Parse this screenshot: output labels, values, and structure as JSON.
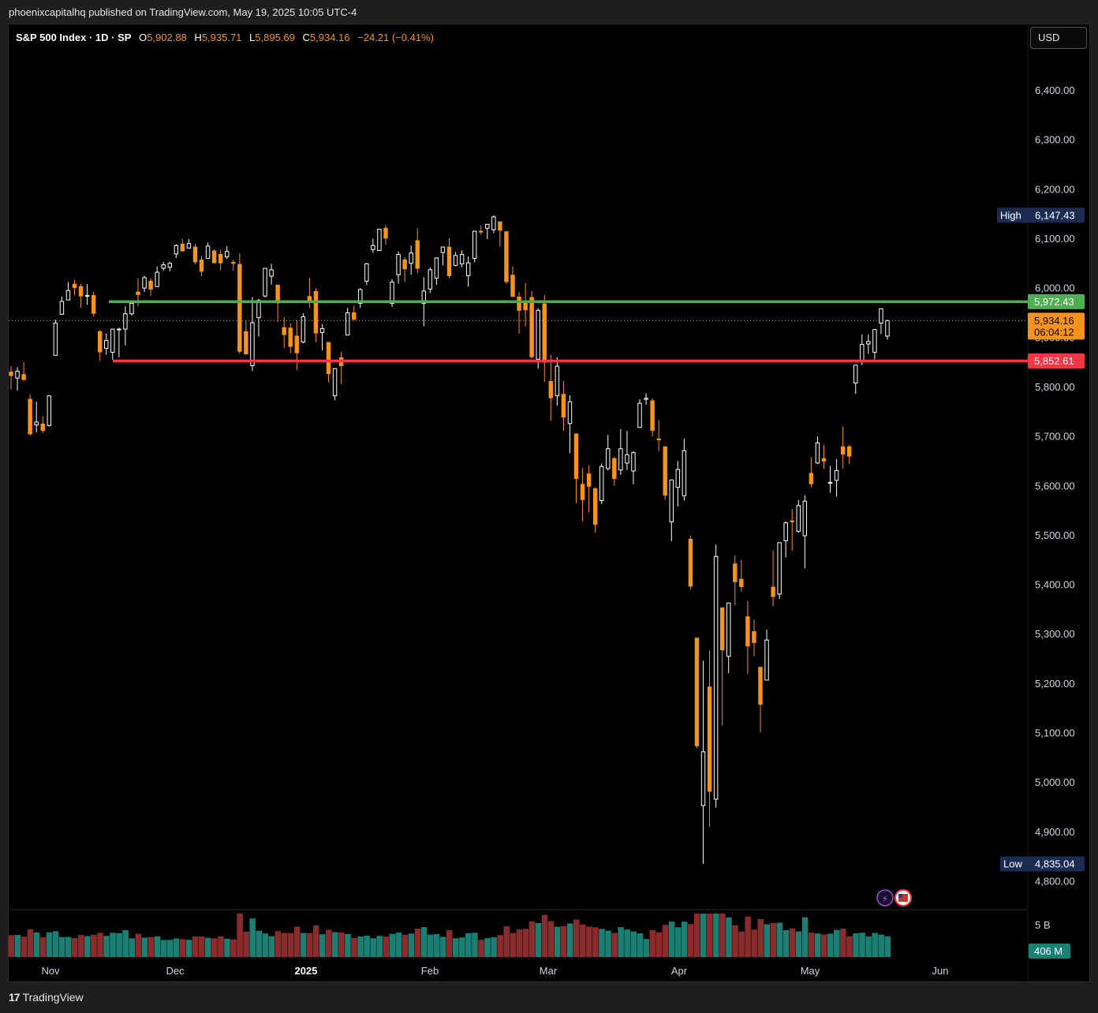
{
  "header": {
    "published": "phoenixcapitalhq published on TradingView.com, May 19, 2025 10:05 UTC-4"
  },
  "legend": {
    "symbol": "S&P 500 Index · 1D · SP",
    "o_label": "O",
    "o_value": "5,902.88",
    "h_label": "H",
    "h_value": "5,935.71",
    "l_label": "L",
    "l_value": "5,895.69",
    "c_label": "C",
    "c_value": "5,934.16",
    "change": "−24.21 (−0.41%)"
  },
  "currency": "USD",
  "footer": {
    "brand": "TradingView",
    "logo": "tv-logo-icon"
  },
  "colors": {
    "up": "#ffffff",
    "down": "#f7931a",
    "background": "#000000",
    "resistance": "#4caf50",
    "support": "#f23645",
    "vol_up": "#1b7f74",
    "vol_down": "#8b2b2b",
    "label_bg": "#1c2b52"
  },
  "chart_data": {
    "type": "candlestick",
    "y_axis": {
      "ticks": [
        "6,400.00",
        "6,300.00",
        "6,200.00",
        "6,100.00",
        "6,000.00",
        "5,900.00",
        "5,800.00",
        "5,700.00",
        "5,600.00",
        "5,500.00",
        "5,400.00",
        "5,300.00",
        "5,200.00",
        "5,100.00",
        "5,000.00",
        "4,900.00",
        "4,800.00"
      ],
      "range": [
        4780,
        6430
      ]
    },
    "x_axis": {
      "labels": [
        "Nov",
        "Dec",
        "2025",
        "Feb",
        "Mar",
        "Apr",
        "May",
        "Jun"
      ]
    },
    "price_labels": {
      "high": {
        "label": "High",
        "value": "6,147.43"
      },
      "low": {
        "label": "Low",
        "value": "4,835.04"
      },
      "resistance": "5,972.43",
      "current": "5,934.16",
      "countdown": "06:04:12",
      "support": "5,852.61"
    },
    "horizontal_lines": [
      {
        "name": "resistance",
        "value": 5972.43
      },
      {
        "name": "support",
        "value": 5852.61
      },
      {
        "name": "last-price",
        "value": 5934.16
      }
    ],
    "volume": {
      "max_label": "5 B",
      "current_label": "406 M"
    },
    "candles": [
      {
        "date": "2024-10-28",
        "o": 5830,
        "h": 5842,
        "l": 5795,
        "c": 5823
      },
      {
        "date": "2024-10-29",
        "o": 5818,
        "h": 5840,
        "l": 5792,
        "c": 5832
      },
      {
        "date": "2024-10-30",
        "o": 5825,
        "h": 5850,
        "l": 5812,
        "c": 5815
      },
      {
        "date": "2024-10-31",
        "o": 5775,
        "h": 5785,
        "l": 5702,
        "c": 5705
      },
      {
        "date": "2024-11-01",
        "o": 5723,
        "h": 5770,
        "l": 5708,
        "c": 5729
      },
      {
        "date": "2024-11-04",
        "o": 5725,
        "h": 5741,
        "l": 5707,
        "c": 5712
      },
      {
        "date": "2024-11-05",
        "o": 5722,
        "h": 5783,
        "l": 5720,
        "c": 5782
      },
      {
        "date": "2024-11-06",
        "o": 5864,
        "h": 5936,
        "l": 5864,
        "c": 5929
      },
      {
        "date": "2024-11-07",
        "o": 5947,
        "h": 5983,
        "l": 5947,
        "c": 5973
      },
      {
        "date": "2024-11-08",
        "o": 5976,
        "h": 6012,
        "l": 5976,
        "c": 5995
      },
      {
        "date": "2024-11-11",
        "o": 6008,
        "h": 6017,
        "l": 5986,
        "c": 6001
      },
      {
        "date": "2024-11-12",
        "o": 6003,
        "h": 6009,
        "l": 5960,
        "c": 5984
      },
      {
        "date": "2024-11-13",
        "o": 5985,
        "h": 6008,
        "l": 5966,
        "c": 5985
      },
      {
        "date": "2024-11-14",
        "o": 5985,
        "h": 5993,
        "l": 5942,
        "c": 5949
      },
      {
        "date": "2024-11-15",
        "o": 5912,
        "h": 5915,
        "l": 5853,
        "c": 5871
      },
      {
        "date": "2024-11-18",
        "o": 5878,
        "h": 5908,
        "l": 5865,
        "c": 5894
      },
      {
        "date": "2024-11-19",
        "o": 5870,
        "h": 5917,
        "l": 5855,
        "c": 5917
      },
      {
        "date": "2024-11-20",
        "o": 5917,
        "h": 5920,
        "l": 5860,
        "c": 5917
      },
      {
        "date": "2024-11-21",
        "o": 5917,
        "h": 5963,
        "l": 5884,
        "c": 5948
      },
      {
        "date": "2024-11-22",
        "o": 5948,
        "h": 5972,
        "l": 5944,
        "c": 5969
      },
      {
        "date": "2024-11-25",
        "o": 5992,
        "h": 6020,
        "l": 5963,
        "c": 5987
      },
      {
        "date": "2024-11-26",
        "o": 6000,
        "h": 6025,
        "l": 5992,
        "c": 6021
      },
      {
        "date": "2024-11-27",
        "o": 6014,
        "h": 6020,
        "l": 5984,
        "c": 5998
      },
      {
        "date": "2024-11-29",
        "o": 6003,
        "h": 6044,
        "l": 6003,
        "c": 6032
      },
      {
        "date": "2024-12-02",
        "o": 6040,
        "h": 6053,
        "l": 6035,
        "c": 6047
      },
      {
        "date": "2024-12-03",
        "o": 6042,
        "h": 6053,
        "l": 6034,
        "c": 6050
      },
      {
        "date": "2024-12-04",
        "o": 6069,
        "h": 6089,
        "l": 6061,
        "c": 6086
      },
      {
        "date": "2024-12-05",
        "o": 6089,
        "h": 6099,
        "l": 6075,
        "c": 6075
      },
      {
        "date": "2024-12-06",
        "o": 6081,
        "h": 6099,
        "l": 6080,
        "c": 6090
      },
      {
        "date": "2024-12-09",
        "o": 6083,
        "h": 6089,
        "l": 6048,
        "c": 6053
      },
      {
        "date": "2024-12-10",
        "o": 6057,
        "h": 6065,
        "l": 6024,
        "c": 6034
      },
      {
        "date": "2024-12-11",
        "o": 6060,
        "h": 6092,
        "l": 6060,
        "c": 6085
      },
      {
        "date": "2024-12-12",
        "o": 6075,
        "h": 6079,
        "l": 6051,
        "c": 6051
      },
      {
        "date": "2024-12-13",
        "o": 6068,
        "h": 6078,
        "l": 6036,
        "c": 6051
      },
      {
        "date": "2024-12-16",
        "o": 6063,
        "h": 6085,
        "l": 6059,
        "c": 6074
      },
      {
        "date": "2024-12-17",
        "o": 6052,
        "h": 6057,
        "l": 6035,
        "c": 6050
      },
      {
        "date": "2024-12-18",
        "o": 6048,
        "h": 6070,
        "l": 5867,
        "c": 5872
      },
      {
        "date": "2024-12-19",
        "o": 5912,
        "h": 5935,
        "l": 5865,
        "c": 5867
      },
      {
        "date": "2024-12-20",
        "o": 5843,
        "h": 5982,
        "l": 5832,
        "c": 5930
      },
      {
        "date": "2024-12-23",
        "o": 5940,
        "h": 5978,
        "l": 5902,
        "c": 5975
      },
      {
        "date": "2024-12-24",
        "o": 5984,
        "h": 6040,
        "l": 5981,
        "c": 6040
      },
      {
        "date": "2024-12-26",
        "o": 6024,
        "h": 6049,
        "l": 6007,
        "c": 6037
      },
      {
        "date": "2024-12-27",
        "o": 6006,
        "h": 6006,
        "l": 5932,
        "c": 5970
      },
      {
        "date": "2024-12-30",
        "o": 5920,
        "h": 5941,
        "l": 5879,
        "c": 5906
      },
      {
        "date": "2024-12-31",
        "o": 5919,
        "h": 5929,
        "l": 5868,
        "c": 5882
      },
      {
        "date": "2025-01-02",
        "o": 5903,
        "h": 5935,
        "l": 5834,
        "c": 5869
      },
      {
        "date": "2025-01-03",
        "o": 5891,
        "h": 5949,
        "l": 5888,
        "c": 5942
      },
      {
        "date": "2025-01-06",
        "o": 5983,
        "h": 6021,
        "l": 5960,
        "c": 5975
      },
      {
        "date": "2025-01-07",
        "o": 5993,
        "h": 6000,
        "l": 5890,
        "c": 5909
      },
      {
        "date": "2025-01-08",
        "o": 5910,
        "h": 5927,
        "l": 5874,
        "c": 5918
      },
      {
        "date": "2025-01-10",
        "o": 5890,
        "h": 5890,
        "l": 5809,
        "c": 5827
      },
      {
        "date": "2025-01-13",
        "o": 5782,
        "h": 5838,
        "l": 5773,
        "c": 5837
      },
      {
        "date": "2025-01-14",
        "o": 5859,
        "h": 5871,
        "l": 5806,
        "c": 5843
      },
      {
        "date": "2025-01-15",
        "o": 5905,
        "h": 5960,
        "l": 5905,
        "c": 5950
      },
      {
        "date": "2025-01-16",
        "o": 5950,
        "h": 5964,
        "l": 5934,
        "c": 5937
      },
      {
        "date": "2025-01-17",
        "o": 5969,
        "h": 6000,
        "l": 5960,
        "c": 5997
      },
      {
        "date": "2025-01-21",
        "o": 6014,
        "h": 6051,
        "l": 6006,
        "c": 6049
      },
      {
        "date": "2025-01-22",
        "o": 6078,
        "h": 6100,
        "l": 6071,
        "c": 6086
      },
      {
        "date": "2025-01-23",
        "o": 6076,
        "h": 6119,
        "l": 6075,
        "c": 6119
      },
      {
        "date": "2025-01-24",
        "o": 6121,
        "h": 6128,
        "l": 6088,
        "c": 6101
      },
      {
        "date": "2025-01-27",
        "o": 5969,
        "h": 6018,
        "l": 5962,
        "c": 6012
      },
      {
        "date": "2025-01-28",
        "o": 6027,
        "h": 6074,
        "l": 6009,
        "c": 6068
      },
      {
        "date": "2025-01-29",
        "o": 6057,
        "h": 6063,
        "l": 6012,
        "c": 6039
      },
      {
        "date": "2025-01-30",
        "o": 6050,
        "h": 6086,
        "l": 6027,
        "c": 6071
      },
      {
        "date": "2025-01-31",
        "o": 6096,
        "h": 6121,
        "l": 6030,
        "c": 6040
      },
      {
        "date": "2025-02-03",
        "o": 5969,
        "h": 6022,
        "l": 5923,
        "c": 5994
      },
      {
        "date": "2025-02-04",
        "o": 5998,
        "h": 6042,
        "l": 5990,
        "c": 6037
      },
      {
        "date": "2025-02-05",
        "o": 6020,
        "h": 6062,
        "l": 6007,
        "c": 6061
      },
      {
        "date": "2025-02-06",
        "o": 6072,
        "h": 6084,
        "l": 6046,
        "c": 6083
      },
      {
        "date": "2025-02-07",
        "o": 6083,
        "h": 6101,
        "l": 6020,
        "c": 6025
      },
      {
        "date": "2025-02-10",
        "o": 6046,
        "h": 6073,
        "l": 6044,
        "c": 6066
      },
      {
        "date": "2025-02-11",
        "o": 6049,
        "h": 6076,
        "l": 6042,
        "c": 6068
      },
      {
        "date": "2025-02-12",
        "o": 6025,
        "h": 6064,
        "l": 6003,
        "c": 6051
      },
      {
        "date": "2025-02-13",
        "o": 6060,
        "h": 6116,
        "l": 6052,
        "c": 6115
      },
      {
        "date": "2025-02-14",
        "o": 6115,
        "h": 6127,
        "l": 6108,
        "c": 6114
      },
      {
        "date": "2025-02-18",
        "o": 6121,
        "h": 6129,
        "l": 6099,
        "c": 6129
      },
      {
        "date": "2025-02-19",
        "o": 6118,
        "h": 6147,
        "l": 6111,
        "c": 6144
      },
      {
        "date": "2025-02-20",
        "o": 6134,
        "h": 6134,
        "l": 6084,
        "c": 6117
      },
      {
        "date": "2025-02-21",
        "o": 6114,
        "h": 6114,
        "l": 6008,
        "c": 6013
      },
      {
        "date": "2025-02-24",
        "o": 6026,
        "h": 6044,
        "l": 5982,
        "c": 5983
      },
      {
        "date": "2025-02-25",
        "o": 5982,
        "h": 5992,
        "l": 5908,
        "c": 5955
      },
      {
        "date": "2025-02-26",
        "o": 5970,
        "h": 6010,
        "l": 5922,
        "c": 5956
      },
      {
        "date": "2025-02-27",
        "o": 5981,
        "h": 5994,
        "l": 5858,
        "c": 5861
      },
      {
        "date": "2025-02-28",
        "o": 5856,
        "h": 5959,
        "l": 5837,
        "c": 5955
      },
      {
        "date": "2025-03-03",
        "o": 5968,
        "h": 5986,
        "l": 5810,
        "c": 5850
      },
      {
        "date": "2025-03-04",
        "o": 5811,
        "h": 5865,
        "l": 5732,
        "c": 5778
      },
      {
        "date": "2025-03-05",
        "o": 5782,
        "h": 5860,
        "l": 5762,
        "c": 5842
      },
      {
        "date": "2025-03-06",
        "o": 5785,
        "h": 5812,
        "l": 5711,
        "c": 5739
      },
      {
        "date": "2025-03-07",
        "o": 5726,
        "h": 5783,
        "l": 5666,
        "c": 5770
      },
      {
        "date": "2025-03-10",
        "o": 5705,
        "h": 5705,
        "l": 5565,
        "c": 5615
      },
      {
        "date": "2025-03-11",
        "o": 5603,
        "h": 5636,
        "l": 5528,
        "c": 5572
      },
      {
        "date": "2025-03-12",
        "o": 5624,
        "h": 5642,
        "l": 5546,
        "c": 5599
      },
      {
        "date": "2025-03-13",
        "o": 5594,
        "h": 5597,
        "l": 5505,
        "c": 5522
      },
      {
        "date": "2025-03-14",
        "o": 5570,
        "h": 5645,
        "l": 5563,
        "c": 5639
      },
      {
        "date": "2025-03-17",
        "o": 5635,
        "h": 5703,
        "l": 5631,
        "c": 5675
      },
      {
        "date": "2025-03-18",
        "o": 5655,
        "h": 5659,
        "l": 5600,
        "c": 5615
      },
      {
        "date": "2025-03-19",
        "o": 5632,
        "h": 5715,
        "l": 5622,
        "c": 5675
      },
      {
        "date": "2025-03-20",
        "o": 5646,
        "h": 5711,
        "l": 5632,
        "c": 5663
      },
      {
        "date": "2025-03-21",
        "o": 5630,
        "h": 5670,
        "l": 5603,
        "c": 5667
      },
      {
        "date": "2025-03-24",
        "o": 5718,
        "h": 5775,
        "l": 5718,
        "c": 5767
      },
      {
        "date": "2025-03-25",
        "o": 5775,
        "h": 5787,
        "l": 5764,
        "c": 5777
      },
      {
        "date": "2025-03-26",
        "o": 5772,
        "h": 5777,
        "l": 5700,
        "c": 5712
      },
      {
        "date": "2025-03-27",
        "o": 5695,
        "h": 5733,
        "l": 5670,
        "c": 5693
      },
      {
        "date": "2025-03-28",
        "o": 5679,
        "h": 5679,
        "l": 5572,
        "c": 5581
      },
      {
        "date": "2025-03-31",
        "o": 5527,
        "h": 5612,
        "l": 5488,
        "c": 5612
      },
      {
        "date": "2025-04-01",
        "o": 5597,
        "h": 5650,
        "l": 5558,
        "c": 5633
      },
      {
        "date": "2025-04-02",
        "o": 5580,
        "h": 5695,
        "l": 5570,
        "c": 5671
      },
      {
        "date": "2025-04-03",
        "o": 5492,
        "h": 5499,
        "l": 5390,
        "c": 5397
      },
      {
        "date": "2025-04-04",
        "o": 5292,
        "h": 5292,
        "l": 5069,
        "c": 5074
      },
      {
        "date": "2025-04-07",
        "o": 4953,
        "h": 5246,
        "l": 4835,
        "c": 5062
      },
      {
        "date": "2025-04-08",
        "o": 5193,
        "h": 5267,
        "l": 4910,
        "c": 4982
      },
      {
        "date": "2025-04-09",
        "o": 4966,
        "h": 5481,
        "l": 4949,
        "c": 5457
      },
      {
        "date": "2025-04-10",
        "o": 5353,
        "h": 5353,
        "l": 5115,
        "c": 5268
      },
      {
        "date": "2025-04-11",
        "o": 5255,
        "h": 5362,
        "l": 5221,
        "c": 5363
      },
      {
        "date": "2025-04-14",
        "o": 5442,
        "h": 5459,
        "l": 5358,
        "c": 5406
      },
      {
        "date": "2025-04-15",
        "o": 5411,
        "h": 5450,
        "l": 5386,
        "c": 5396
      },
      {
        "date": "2025-04-16",
        "o": 5335,
        "h": 5367,
        "l": 5220,
        "c": 5276
      },
      {
        "date": "2025-04-17",
        "o": 5305,
        "h": 5329,
        "l": 5255,
        "c": 5283
      },
      {
        "date": "2025-04-21",
        "o": 5233,
        "h": 5232,
        "l": 5101,
        "c": 5158
      },
      {
        "date": "2025-04-22",
        "o": 5207,
        "h": 5309,
        "l": 5207,
        "c": 5288
      },
      {
        "date": "2025-04-23",
        "o": 5395,
        "h": 5469,
        "l": 5356,
        "c": 5376
      },
      {
        "date": "2025-04-24",
        "o": 5381,
        "h": 5485,
        "l": 5371,
        "c": 5485
      },
      {
        "date": "2025-04-25",
        "o": 5489,
        "h": 5528,
        "l": 5455,
        "c": 5525
      },
      {
        "date": "2025-04-28",
        "o": 5529,
        "h": 5553,
        "l": 5469,
        "c": 5528
      },
      {
        "date": "2025-04-29",
        "o": 5508,
        "h": 5571,
        "l": 5505,
        "c": 5560
      },
      {
        "date": "2025-04-30",
        "o": 5499,
        "h": 5581,
        "l": 5433,
        "c": 5569
      },
      {
        "date": "2025-05-01",
        "o": 5625,
        "h": 5658,
        "l": 5597,
        "c": 5604
      },
      {
        "date": "2025-05-02",
        "o": 5646,
        "h": 5700,
        "l": 5644,
        "c": 5687
      },
      {
        "date": "2025-05-05",
        "o": 5655,
        "h": 5683,
        "l": 5634,
        "c": 5650
      },
      {
        "date": "2025-05-06",
        "o": 5605,
        "h": 5640,
        "l": 5586,
        "c": 5607
      },
      {
        "date": "2025-05-07",
        "o": 5611,
        "h": 5654,
        "l": 5578,
        "c": 5631
      },
      {
        "date": "2025-05-08",
        "o": 5679,
        "h": 5720,
        "l": 5635,
        "c": 5664
      },
      {
        "date": "2025-05-09",
        "o": 5679,
        "h": 5683,
        "l": 5644,
        "c": 5660
      },
      {
        "date": "2025-05-12",
        "o": 5808,
        "h": 5844,
        "l": 5786,
        "c": 5844
      },
      {
        "date": "2025-05-13",
        "o": 5854,
        "h": 5906,
        "l": 5844,
        "c": 5886
      },
      {
        "date": "2025-05-14",
        "o": 5887,
        "h": 5906,
        "l": 5867,
        "c": 5892
      },
      {
        "date": "2025-05-15",
        "o": 5870,
        "h": 5917,
        "l": 5856,
        "c": 5916
      },
      {
        "date": "2025-05-16",
        "o": 5929,
        "h": 5958,
        "l": 5907,
        "c": 5958
      },
      {
        "date": "2025-05-19",
        "o": 5902.88,
        "h": 5935.71,
        "l": 5895.69,
        "c": 5934.16
      }
    ]
  }
}
